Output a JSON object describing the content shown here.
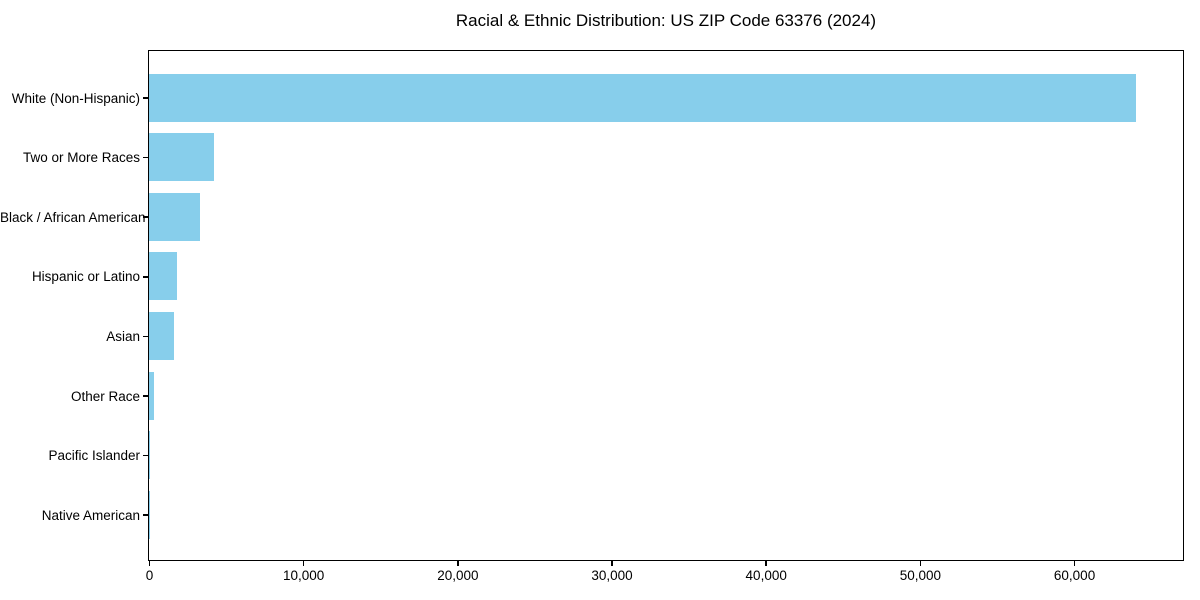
{
  "chart_data": {
    "type": "bar",
    "orientation": "horizontal",
    "title": "Racial & Ethnic Distribution: US ZIP Code 63376 (2024)",
    "categories": [
      "White (Non-Hispanic)",
      "Two or More Races",
      "Black / African American",
      "Hispanic or Latino",
      "Asian",
      "Other Race",
      "Pacific Islander",
      "Native American"
    ],
    "values": [
      64000,
      4200,
      3300,
      1800,
      1600,
      300,
      60,
      40
    ],
    "xlabel": "",
    "ylabel": "",
    "xlim": [
      0,
      67000
    ],
    "xticks": {
      "values": [
        0,
        10000,
        20000,
        30000,
        40000,
        50000,
        60000
      ],
      "labels": [
        "0",
        "10,000",
        "20,000",
        "30,000",
        "40,000",
        "50,000",
        "60,000"
      ]
    },
    "bar_color": "#87CEEB",
    "axis_color": "#000000",
    "background_color": "#ffffff",
    "grid": false,
    "legend": false
  }
}
